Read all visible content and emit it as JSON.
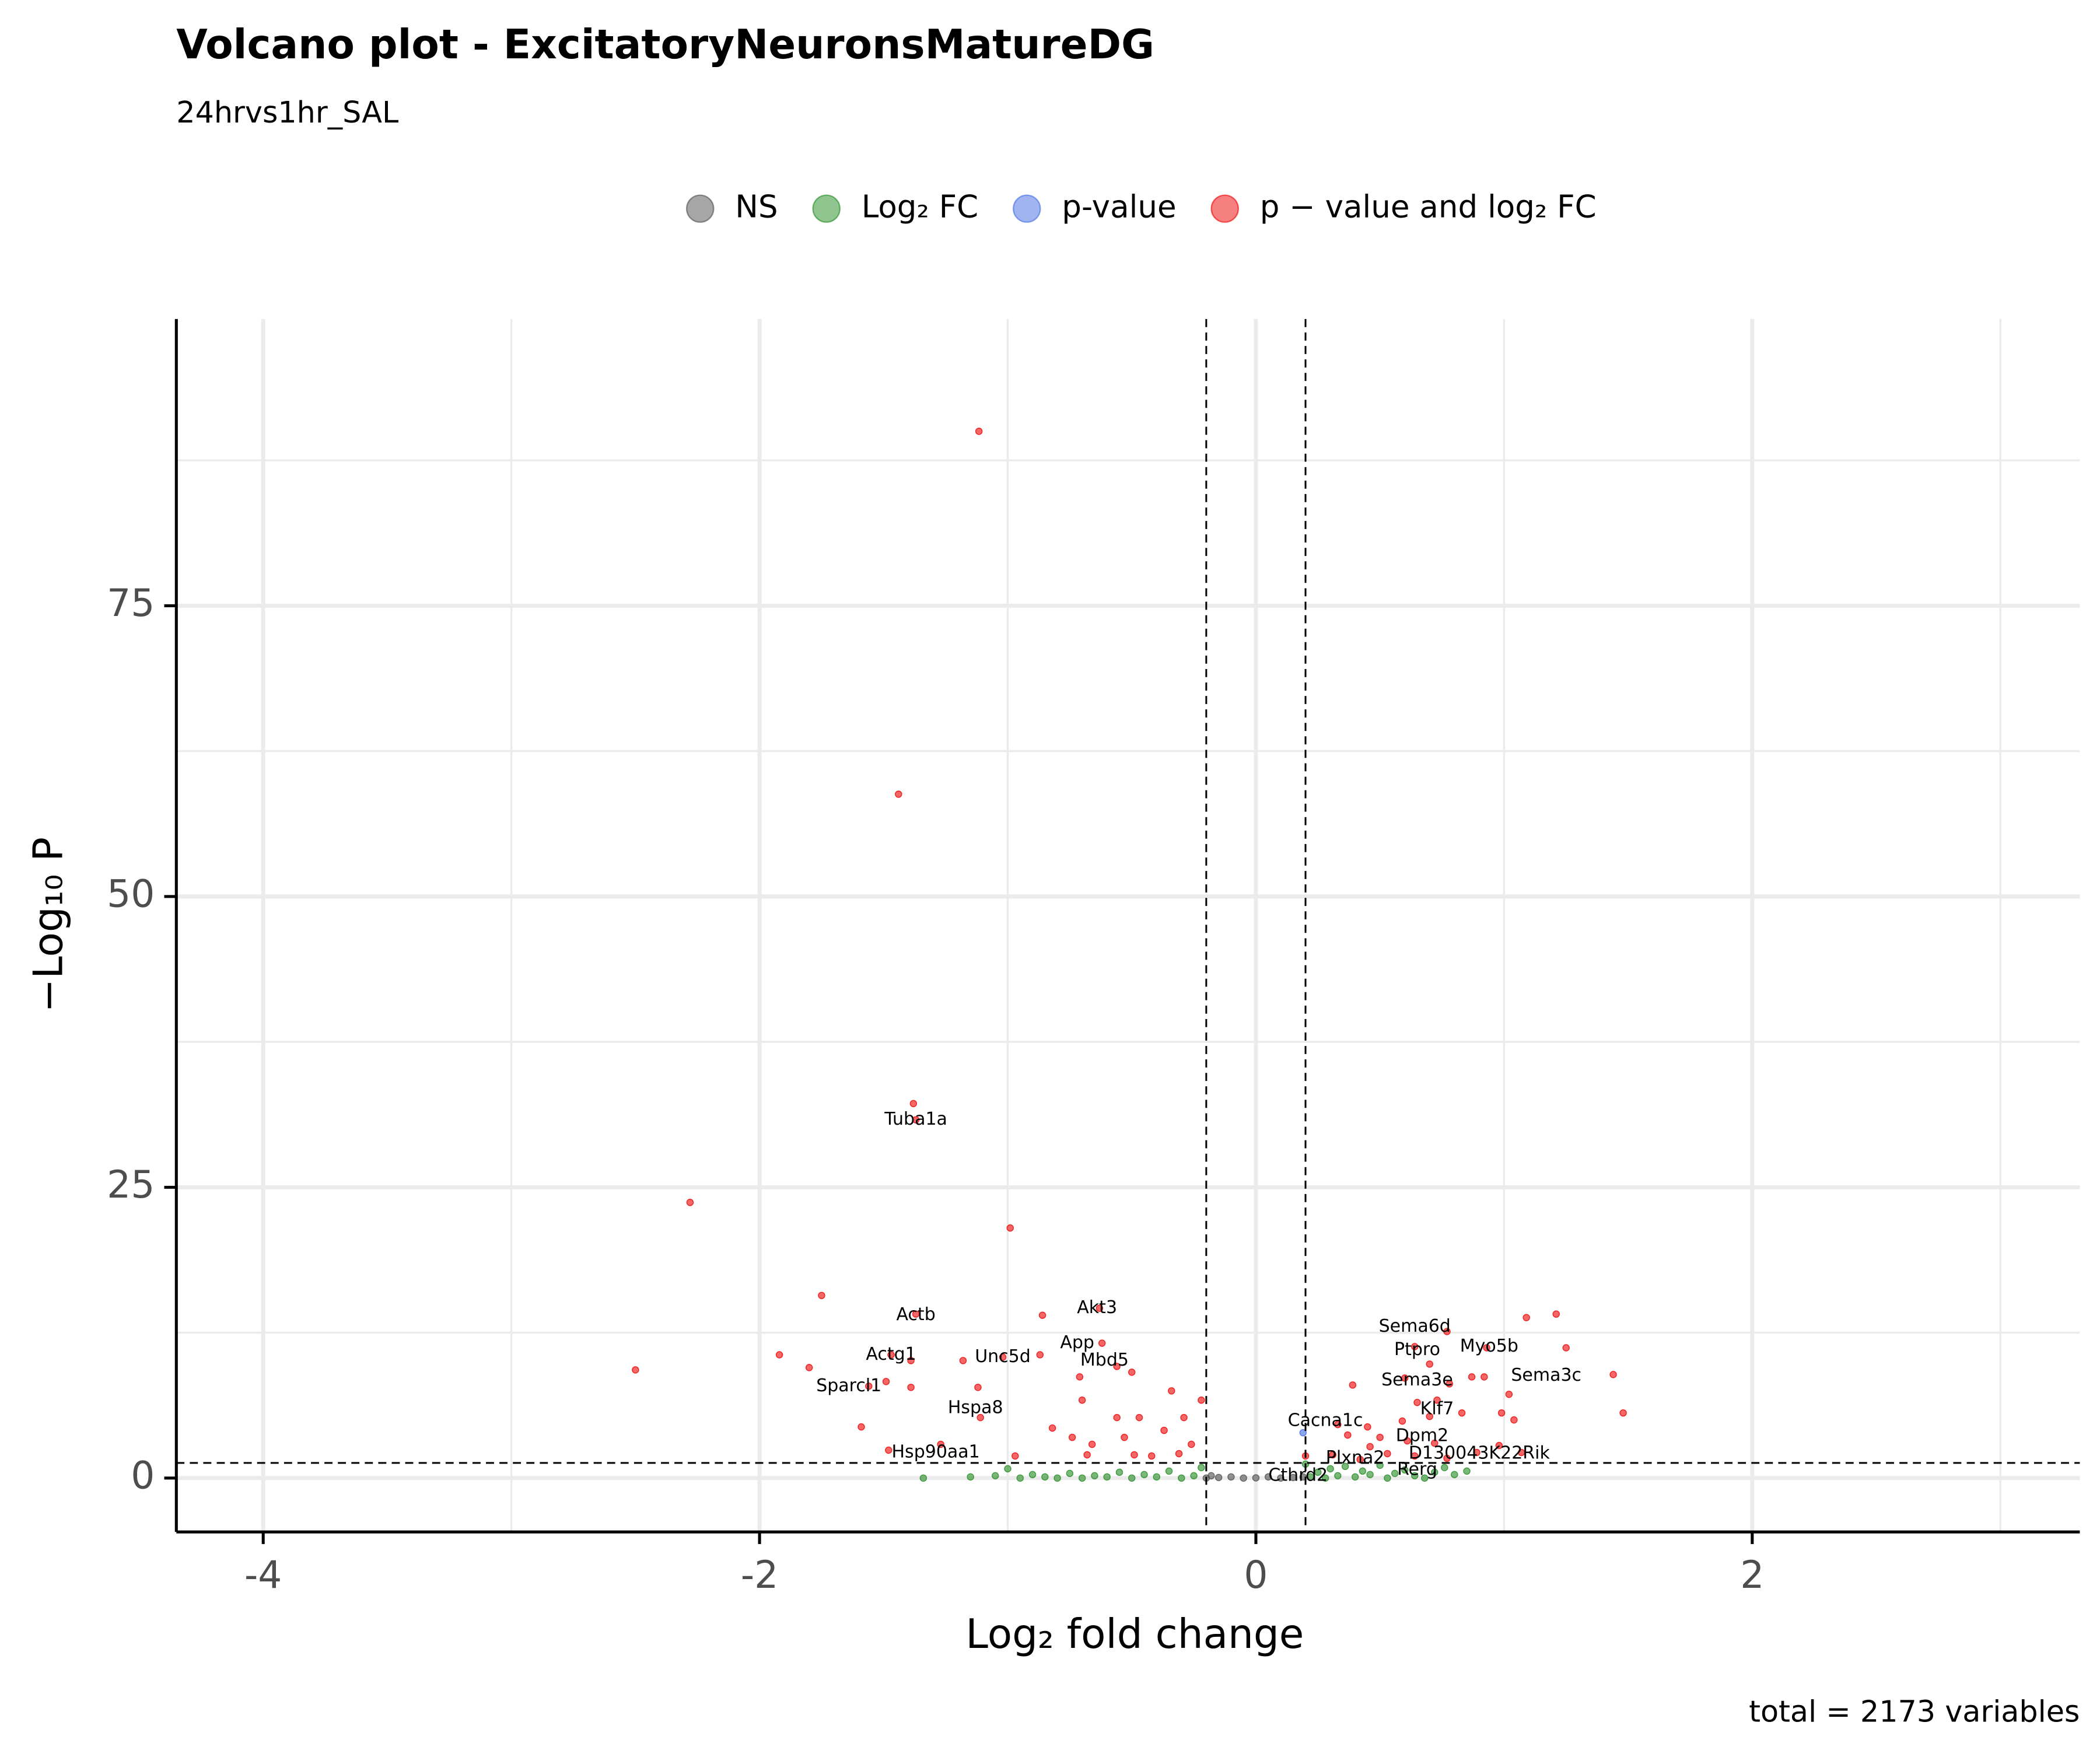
{
  "chart_data": {
    "type": "scatter",
    "title": "Volcano plot - ExcitatoryNeuronsMatureDG",
    "subtitle": "24hrvs1hr_SAL",
    "x_label": "Log₂ fold change",
    "y_label": "−Log₁₀ P",
    "caption": "total = 2173 variables",
    "xlim": [
      -4.35,
      3.32
    ],
    "ylim": [
      -4.63,
      99.65
    ],
    "xticks": [
      -4,
      -2,
      0,
      2
    ],
    "yticks": [
      0,
      25,
      50,
      75
    ],
    "minor_xticks": [
      -3,
      -1,
      1,
      3
    ],
    "minor_yticks": [
      12.5,
      37.5,
      62.5,
      87.5
    ],
    "grid": true,
    "legend_position": "top",
    "vlines": [
      -0.2,
      0.2
    ],
    "hline": 1.3,
    "series": [
      {
        "name": "NS",
        "color": "#4d4d4d",
        "x": [
          -0.2,
          -0.15,
          -0.1,
          -0.05,
          0,
          0.05,
          0.1,
          0.15,
          0.19,
          -0.18
        ],
        "values": [
          0,
          0.05,
          0.1,
          0,
          0.02,
          0.1,
          0,
          0.05,
          0.1,
          0.2
        ]
      },
      {
        "name": "Log₂ FC",
        "color": "#228b22",
        "x": [
          -1.34,
          -1.15,
          -1.05,
          -1.0,
          -0.95,
          -0.9,
          -0.85,
          -0.8,
          -0.75,
          -0.7,
          -0.65,
          -0.6,
          -0.55,
          -0.5,
          -0.45,
          -0.4,
          -0.35,
          -0.3,
          -0.25,
          -0.22,
          0.22,
          0.25,
          0.28,
          0.3,
          0.33,
          0.36,
          0.4,
          0.43,
          0.46,
          0.5,
          0.53,
          0.56,
          0.6,
          0.64,
          0.68,
          0.72,
          0.76,
          0.8,
          0.85,
          0.2
        ],
        "values": [
          0,
          0.1,
          0.2,
          0.8,
          0,
          0.3,
          0.1,
          0,
          0.4,
          0,
          0.2,
          0.1,
          0.5,
          0,
          0.3,
          0.1,
          0.6,
          0,
          0.2,
          0.9,
          0.1,
          0.5,
          0,
          0.8,
          0.2,
          1.0,
          0.1,
          0.6,
          0.3,
          1.1,
          0,
          0.4,
          0.7,
          0.2,
          0,
          0.5,
          0.9,
          0.3,
          0.6,
          1.2
        ]
      },
      {
        "name": "p-value",
        "color": "#4169e1",
        "x": [
          0.19
        ],
        "values": [
          3.9
        ]
      },
      {
        "name": "p − value and log₂ FC",
        "color": "#ee0000",
        "x": [
          -1.116,
          -1.44,
          -1.38,
          -1.37,
          -2.28,
          -0.99,
          -1.75,
          -1.37,
          -0.86,
          -0.63,
          -1.92,
          -1.8,
          -2.5,
          -1.47,
          -1.39,
          -1.18,
          -1.02,
          -0.87,
          -0.62,
          -0.56,
          -0.5,
          -0.71,
          -1.49,
          -1.39,
          -1.56,
          -1.12,
          -0.34,
          -0.22,
          -0.7,
          -1.11,
          -1.59,
          -0.82,
          -0.56,
          -0.47,
          -0.29,
          -0.37,
          -0.74,
          -0.66,
          -0.53,
          -0.26,
          -1.27,
          -1.48,
          -0.68,
          -0.49,
          -0.42,
          -0.31,
          -0.97,
          1.21,
          1.09,
          1.25,
          0.77,
          0.64,
          0.7,
          0.93,
          1.44,
          0.87,
          0.92,
          0.6,
          0.78,
          0.39,
          1.02,
          0.73,
          0.65,
          1.48,
          0.99,
          1.04,
          0.83,
          0.7,
          0.59,
          0.45,
          0.33,
          0.37,
          0.5,
          0.61,
          0.72,
          0.98,
          0.89,
          0.46,
          0.53,
          0.31,
          0.64,
          0.77,
          0.42,
          1.07,
          0.2
        ],
        "values": [
          90.0,
          58.8,
          32.2,
          30.8,
          23.7,
          21.5,
          15.7,
          14.1,
          14.0,
          14.6,
          10.6,
          9.5,
          9.3,
          10.6,
          10.1,
          10.1,
          10.4,
          10.6,
          11.6,
          9.6,
          9.1,
          8.7,
          8.3,
          7.8,
          7.9,
          7.8,
          7.5,
          6.7,
          6.7,
          5.2,
          4.4,
          4.3,
          5.2,
          5.2,
          5.2,
          4.1,
          3.5,
          2.9,
          3.5,
          2.9,
          2.9,
          2.4,
          2.0,
          2.0,
          1.9,
          2.1,
          1.9,
          14.1,
          13.8,
          11.2,
          12.6,
          11.3,
          9.8,
          11.2,
          8.9,
          8.7,
          8.7,
          8.6,
          8.1,
          8.0,
          7.2,
          6.7,
          6.5,
          5.6,
          5.6,
          5.0,
          5.6,
          5.3,
          4.9,
          4.4,
          4.6,
          3.7,
          3.5,
          3.2,
          3.0,
          2.8,
          2.2,
          2.7,
          2.1,
          2.0,
          1.9,
          1.7,
          1.6,
          2.2,
          1.9
        ]
      }
    ],
    "annotations": [
      {
        "text": "Tuba1a",
        "x": -1.37,
        "y": 30.8
      },
      {
        "text": "Actb",
        "x": -1.37,
        "y": 14.0
      },
      {
        "text": "Akt3",
        "x": -0.64,
        "y": 14.6
      },
      {
        "text": "Actg1",
        "x": -1.47,
        "y": 10.6
      },
      {
        "text": "App",
        "x": -0.72,
        "y": 11.6
      },
      {
        "text": "Unc5d",
        "x": -1.02,
        "y": 10.4
      },
      {
        "text": "Mbd5",
        "x": -0.61,
        "y": 10.1
      },
      {
        "text": "Sparcl1",
        "x": -1.64,
        "y": 7.9
      },
      {
        "text": "Hspa8",
        "x": -1.13,
        "y": 6.0
      },
      {
        "text": "Hsp90aa1",
        "x": -1.29,
        "y": 2.2
      },
      {
        "text": "Sema6d",
        "x": 0.64,
        "y": 13.0
      },
      {
        "text": "Ptpro",
        "x": 0.65,
        "y": 11.0
      },
      {
        "text": "Myo5b",
        "x": 0.94,
        "y": 11.3
      },
      {
        "text": "Sema3e",
        "x": 0.65,
        "y": 8.4
      },
      {
        "text": "Sema3c",
        "x": 1.17,
        "y": 8.8
      },
      {
        "text": "Klf7",
        "x": 0.73,
        "y": 5.9
      },
      {
        "text": "Cacna1c",
        "x": 0.28,
        "y": 4.9
      },
      {
        "text": "Dpm2",
        "x": 0.67,
        "y": 3.6
      },
      {
        "text": "D130043K22Rik",
        "x": 0.9,
        "y": 2.1
      },
      {
        "text": "Plxna2",
        "x": 0.4,
        "y": 1.7
      },
      {
        "text": "Rerg",
        "x": 0.65,
        "y": 0.7
      },
      {
        "text": "Cthrd2",
        "x": 0.17,
        "y": 0.2
      }
    ]
  }
}
